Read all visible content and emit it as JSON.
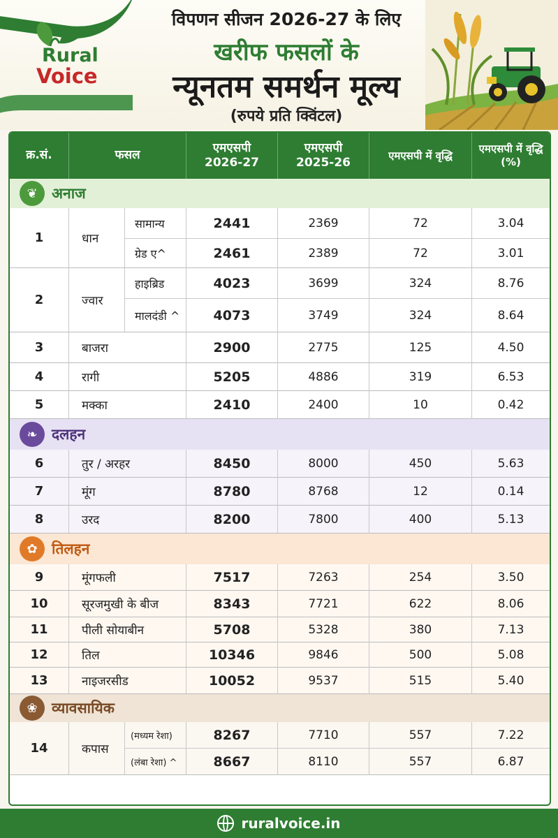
{
  "brand": {
    "rural": "Rural",
    "voice": "Voice"
  },
  "title": {
    "line1": "विपणन सीजन 2026-27 के लिए",
    "line2": "खरीफ फसलों के",
    "line3": "न्यूनतम समर्थन मूल्य",
    "line4": "(रुपये प्रति क्विंटल)"
  },
  "columns": [
    "क्र.सं.",
    "फसल",
    "एमएसपी 2026-27",
    "एमएसपी 2025-26",
    "एमएसपी में वृद्धि",
    "एमएसपी में वृद्धि (%)"
  ],
  "categories": {
    "anaj": "अनाज",
    "dalhan": "दलहन",
    "tilhan": "तिलहन",
    "vyav": "व्यावसायिक"
  },
  "rows": [
    {
      "sn": "1",
      "crop": "धान",
      "variants": [
        {
          "name": "सामान्य",
          "msp27": "2441",
          "msp26": "2369",
          "inc": "72",
          "pct": "3.04"
        },
        {
          "name": "ग्रेड ए^",
          "msp27": "2461",
          "msp26": "2389",
          "inc": "72",
          "pct": "3.01"
        }
      ]
    },
    {
      "sn": "2",
      "crop": "ज्वार",
      "variants": [
        {
          "name": "हाइब्रिड",
          "msp27": "4023",
          "msp26": "3699",
          "inc": "324",
          "pct": "8.76"
        },
        {
          "name": "मालदंडी ^",
          "msp27": "4073",
          "msp26": "3749",
          "inc": "324",
          "pct": "8.64"
        }
      ]
    },
    {
      "sn": "3",
      "crop": "बाजरा",
      "msp27": "2900",
      "msp26": "2775",
      "inc": "125",
      "pct": "4.50"
    },
    {
      "sn": "4",
      "crop": "रागी",
      "msp27": "5205",
      "msp26": "4886",
      "inc": "319",
      "pct": "6.53"
    },
    {
      "sn": "5",
      "crop": "मक्का",
      "msp27": "2410",
      "msp26": "2400",
      "inc": "10",
      "pct": "0.42"
    },
    {
      "sn": "6",
      "crop": "तुर / अरहर",
      "msp27": "8450",
      "msp26": "8000",
      "inc": "450",
      "pct": "5.63"
    },
    {
      "sn": "7",
      "crop": "मूंग",
      "msp27": "8780",
      "msp26": "8768",
      "inc": "12",
      "pct": "0.14"
    },
    {
      "sn": "8",
      "crop": "उरद",
      "msp27": "8200",
      "msp26": "7800",
      "inc": "400",
      "pct": "5.13"
    },
    {
      "sn": "9",
      "crop": "मूंगफली",
      "msp27": "7517",
      "msp26": "7263",
      "inc": "254",
      "pct": "3.50"
    },
    {
      "sn": "10",
      "crop": "सूरजमुखी के बीज",
      "msp27": "8343",
      "msp26": "7721",
      "inc": "622",
      "pct": "8.06"
    },
    {
      "sn": "11",
      "crop": "पीली सोयाबीन",
      "msp27": "5708",
      "msp26": "5328",
      "inc": "380",
      "pct": "7.13"
    },
    {
      "sn": "12",
      "crop": "तिल",
      "msp27": "10346",
      "msp26": "9846",
      "inc": "500",
      "pct": "5.08"
    },
    {
      "sn": "13",
      "crop": "नाइजरसीड",
      "msp27": "10052",
      "msp26": "9537",
      "inc": "515",
      "pct": "5.40"
    },
    {
      "sn": "14",
      "crop": "कपास",
      "variants": [
        {
          "name": "(मध्यम रेशा)",
          "msp27": "8267",
          "msp26": "7710",
          "inc": "557",
          "pct": "7.22"
        },
        {
          "name": "(लंबा रेशा) ^",
          "msp27": "8667",
          "msp26": "8110",
          "inc": "557",
          "pct": "6.87"
        }
      ]
    }
  ],
  "footer": {
    "website": "ruralvoice.in"
  },
  "icons": {
    "anaj": "grain-icon",
    "dalhan": "pulses-icon",
    "tilhan": "oilseed-icon",
    "vyav": "cotton-icon",
    "web": "globe-icon"
  },
  "colors": {
    "primary_green": "#2e7d32",
    "brand_red": "#c62828",
    "dalhan_purple": "#6a4a9c",
    "tilhan_orange": "#e07a28",
    "vyav_brown": "#8a5a33"
  }
}
